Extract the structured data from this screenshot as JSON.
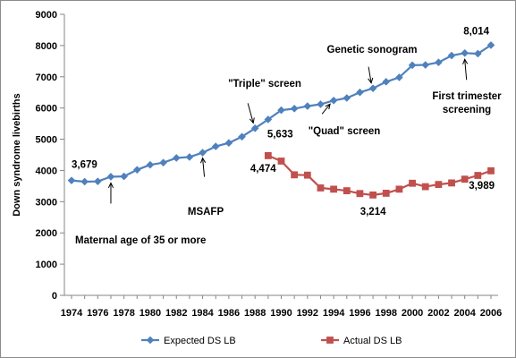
{
  "chart_data": {
    "type": "line",
    "ylabel": "Down syndrome livebirths",
    "ylim": [
      0,
      9000
    ],
    "y_ticks": [
      "0",
      "1000",
      "2000",
      "3000",
      "4000",
      "5000",
      "6000",
      "7000",
      "8000",
      "9000"
    ],
    "x_range": [
      1974,
      2006
    ],
    "x_ticks": [
      "1974",
      "1976",
      "1978",
      "1980",
      "1982",
      "1984",
      "1986",
      "1988",
      "1990",
      "1992",
      "1994",
      "1996",
      "1998",
      "2000",
      "2002",
      "2004",
      "2006"
    ],
    "grid": false,
    "legend_position": "bottom",
    "series": [
      {
        "name": "Expected DS LB",
        "color": "#4F81BD",
        "marker": "diamond",
        "x": [
          1974,
          1975,
          1976,
          1977,
          1978,
          1979,
          1980,
          1981,
          1982,
          1983,
          1984,
          1985,
          1986,
          1987,
          1988,
          1989,
          1990,
          1991,
          1992,
          1993,
          1994,
          1995,
          1996,
          1997,
          1998,
          1999,
          2000,
          2001,
          2002,
          2003,
          2004,
          2005,
          2006
        ],
        "values": [
          3679,
          3640,
          3650,
          3800,
          3810,
          4020,
          4180,
          4250,
          4400,
          4430,
          4570,
          4770,
          4880,
          5080,
          5350,
          5633,
          5930,
          5980,
          6060,
          6120,
          6240,
          6320,
          6500,
          6630,
          6840,
          6980,
          7370,
          7380,
          7460,
          7680,
          7760,
          7740,
          8014
        ]
      },
      {
        "name": "Actual DS LB",
        "color": "#C0504D",
        "marker": "square",
        "x": [
          1989,
          1990,
          1991,
          1992,
          1993,
          1994,
          1995,
          1996,
          1997,
          1998,
          1999,
          2000,
          2001,
          2002,
          2003,
          2004,
          2005,
          2006
        ],
        "values": [
          4474,
          4300,
          3860,
          3850,
          3440,
          3400,
          3350,
          3260,
          3214,
          3270,
          3400,
          3590,
          3480,
          3550,
          3600,
          3720,
          3840,
          3989
        ]
      }
    ],
    "data_labels": [
      {
        "text": "3,679",
        "series": 0,
        "x": 1974
      },
      {
        "text": "5,633",
        "series": 0,
        "x": 1989
      },
      {
        "text": "8,014",
        "series": 0,
        "x": 2006
      },
      {
        "text": "4,474",
        "series": 1,
        "x": 1989
      },
      {
        "text": "3,214",
        "series": 1,
        "x": 1997
      },
      {
        "text": "3,989",
        "series": 1,
        "x": 2006
      }
    ],
    "annotations": [
      {
        "text": [
          "Maternal age of 35 or more"
        ],
        "x": 1977,
        "value": 3800
      },
      {
        "text": [
          "MSAFP"
        ],
        "x": 1984,
        "value": 4570
      },
      {
        "text": [
          "\"Triple\" screen"
        ],
        "x": 1988,
        "value": 5350
      },
      {
        "text": [
          "\"Quad\" screen"
        ],
        "x": 1994,
        "value": 6240
      },
      {
        "text": [
          "Genetic sonogram"
        ],
        "x": 1997,
        "value": 6630
      },
      {
        "text": [
          "First trimester",
          "screening"
        ],
        "x": 2004,
        "value": 7760
      }
    ]
  }
}
